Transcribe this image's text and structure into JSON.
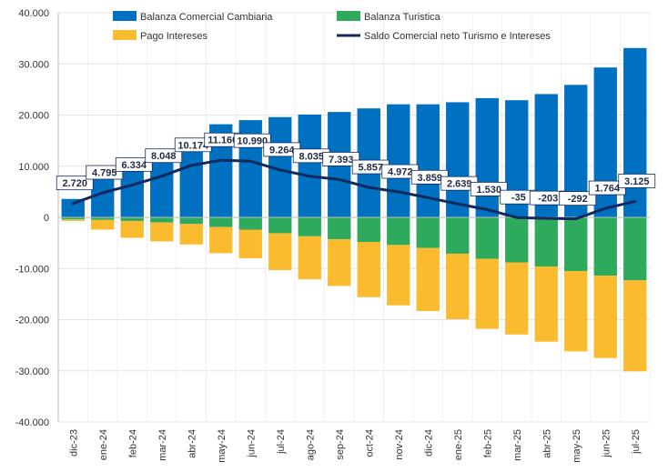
{
  "chart_data": {
    "type": "bar",
    "title": "",
    "xlabel": "",
    "ylabel": "",
    "ylim": [
      -40000,
      40000
    ],
    "yticks": [
      {
        "value": 40000,
        "label": "40.000"
      },
      {
        "value": 30000,
        "label": "30.000"
      },
      {
        "value": 20000,
        "label": "20.000"
      },
      {
        "value": 10000,
        "label": "10.000"
      },
      {
        "value": 0,
        "label": "0"
      },
      {
        "value": -10000,
        "label": "-10.000"
      },
      {
        "value": -20000,
        "label": "-20.000"
      },
      {
        "value": -30000,
        "label": "-30.000"
      },
      {
        "value": -40000,
        "label": "-40.000"
      }
    ],
    "grid": true,
    "legend_position": "top",
    "categories": [
      "dic-23",
      "ene-24",
      "feb-24",
      "mar-24",
      "abr-24",
      "may-24",
      "jun-24",
      "jul-24",
      "ago-24",
      "sep-24",
      "oct-24",
      "nov-24",
      "dic-24",
      "ene-25",
      "feb-25",
      "mar-25",
      "abr-25",
      "may-25",
      "jun-25",
      "jul-25"
    ],
    "series": [
      {
        "name": "Balanza Comercial Cambiaria",
        "kind": "bar",
        "stack": "pos",
        "color": "#0070c0",
        "values": [
          3600,
          7500,
          9200,
          12900,
          15500,
          18200,
          19000,
          19600,
          20100,
          20600,
          21300,
          22100,
          22100,
          22500,
          23300,
          22900,
          24100,
          25900,
          29300,
          33100
        ]
      },
      {
        "name": "Balanza Turistica",
        "kind": "bar",
        "stack": "neg",
        "color": "#2eaa5c",
        "values": [
          -400,
          -500,
          -700,
          -1000,
          -1300,
          -1900,
          -2400,
          -3100,
          -3700,
          -4300,
          -4800,
          -5400,
          -6000,
          -7100,
          -8100,
          -8800,
          -9600,
          -10500,
          -11400,
          -12300
        ]
      },
      {
        "name": "Pago Intereses",
        "kind": "bar",
        "stack": "neg",
        "color": "#fbbb2f",
        "values": [
          -300,
          -1900,
          -3300,
          -3700,
          -4000,
          -5100,
          -5600,
          -7200,
          -8400,
          -9100,
          -10800,
          -11800,
          -12300,
          -12800,
          -13700,
          -14100,
          -14700,
          -15700,
          -16100,
          -17800
        ]
      },
      {
        "name": "Saldo Comercial neto Turismo e Intereses",
        "kind": "line",
        "color": "#14285c",
        "values": [
          2720,
          4795,
          6334,
          8048,
          10174,
          11160,
          10990,
          9264,
          8035,
          7393,
          5857,
          4972,
          3859,
          2639,
          1530,
          -35,
          -203,
          -292,
          1764,
          3125
        ]
      }
    ],
    "line_labels": [
      "2.720",
      "4.795",
      "6.334",
      "8.048",
      "10.174",
      "11.160",
      "10.990",
      "9.264",
      "8.035",
      "7.393",
      "5.857",
      "4.972",
      "3.859",
      "2.639",
      "1.530",
      "-35",
      "-203",
      "-292",
      "1.764",
      "3.125"
    ]
  }
}
